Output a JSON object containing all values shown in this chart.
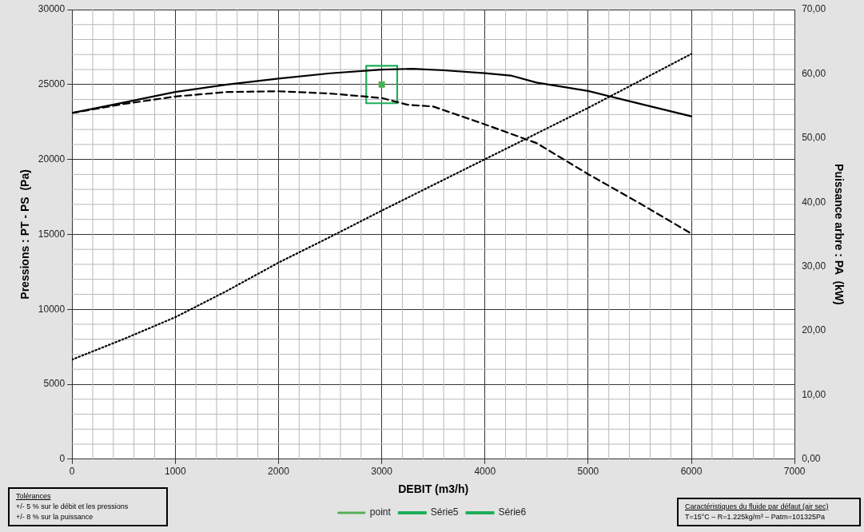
{
  "chart_data": {
    "type": "line",
    "xlabel": "DEBIT (m3/h)",
    "ylabel": "Pressions : PT - PS  (Pa)",
    "y2label": "Puissance arbre : PA  (kW)",
    "xlim": [
      0,
      7000
    ],
    "xticks": [
      0,
      1000,
      2000,
      3000,
      4000,
      5000,
      6000,
      7000
    ],
    "ylim": [
      0,
      30000
    ],
    "yticks": [
      0,
      5000,
      10000,
      15000,
      20000,
      25000,
      30000
    ],
    "y2lim": [
      0,
      70
    ],
    "y2ticks": [
      {
        "value": 0,
        "label": "0,00"
      },
      {
        "value": 10,
        "label": "10,00"
      },
      {
        "value": 20,
        "label": "20,00"
      },
      {
        "value": 30,
        "label": "30,00"
      },
      {
        "value": 40,
        "label": "40,00"
      },
      {
        "value": 50,
        "label": "50,00"
      },
      {
        "value": 60,
        "label": "60,00"
      },
      {
        "value": 70,
        "label": "70,00"
      }
    ],
    "grid": true,
    "legend": "bottom",
    "series": [
      {
        "type": "line",
        "color": "#000000",
        "line_style": "solid",
        "marker": "none",
        "x": [
          0,
          500,
          1000,
          1500,
          2000,
          2500,
          3000,
          3300,
          3600,
          4000,
          4250,
          4500,
          5000,
          5500,
          6000
        ],
        "values": [
          23100,
          23800,
          24500,
          25000,
          25400,
          25750,
          26000,
          26050,
          25950,
          25760,
          25600,
          25130,
          24570,
          23720,
          22880
        ]
      },
      {
        "type": "line",
        "color": "#000000",
        "line_style": "dashed",
        "marker": "none",
        "x": [
          0,
          500,
          1000,
          1500,
          2000,
          2500,
          3000,
          3250,
          3500,
          4000,
          4500,
          5000,
          5500,
          6000
        ],
        "values": [
          23100,
          23700,
          24200,
          24500,
          24550,
          24400,
          24100,
          23650,
          23530,
          22340,
          21090,
          19020,
          17070,
          15050
        ]
      },
      {
        "type": "line",
        "axis": "y2",
        "color": "#000000",
        "line_style": "dotted",
        "marker": "none",
        "x": [
          0,
          500,
          1000,
          1500,
          2000,
          2500,
          3000,
          3500,
          4000,
          4500,
          5000,
          5500,
          6000
        ],
        "values": [
          15.5,
          18.7,
          22.1,
          26.2,
          30.6,
          34.6,
          38.7,
          42.7,
          46.7,
          50.7,
          54.7,
          58.9,
          63.1
        ]
      },
      {
        "type": "scatter",
        "name": "point",
        "color": "#3db54a",
        "marker": "square",
        "x": [
          3000
        ],
        "values": [
          25000
        ]
      },
      {
        "type": "line",
        "name": "Série5",
        "color": "#1fae5a",
        "line_style": "solid",
        "marker": "none",
        "x": [
          2850,
          2850,
          3150
        ],
        "values": [
          23750,
          26250,
          26250
        ]
      },
      {
        "type": "line",
        "name": "Série6",
        "color": "#1fae5a",
        "line_style": "solid",
        "marker": "none",
        "x": [
          2850,
          3150,
          3150
        ],
        "values": [
          23750,
          23750,
          26250
        ]
      }
    ],
    "annotations": [
      "Tolérances",
      "+/-  5 % sur le débit et les pressions",
      "+/-  8 % sur la puissance",
      "Caractéristiques du fluide par défaut (air sec)",
      "T=15°C – R=1.225kg/m³ – Patm=101325Pa"
    ]
  }
}
